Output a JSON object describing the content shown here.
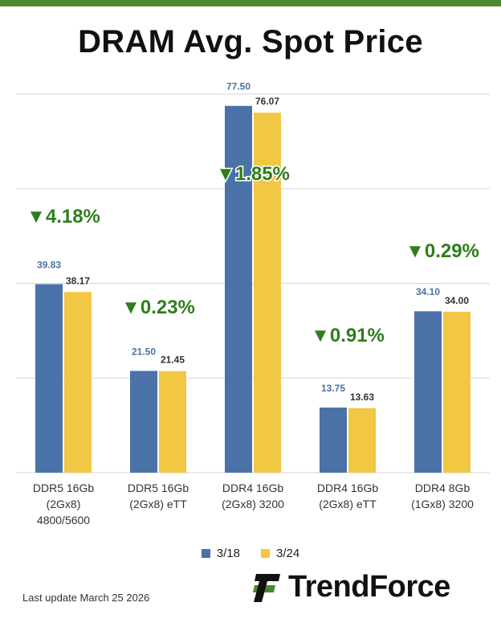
{
  "title": "DRAM Avg. Spot Price",
  "last_update": "Last update  March 25 2026",
  "brand": "TrendForce",
  "colors": {
    "series_1": "#4a72a8",
    "series_2": "#f2c744",
    "change": "#2f7d1c",
    "top_bar": "#4a8a2e"
  },
  "chart_data": {
    "type": "bar",
    "title": "DRAM Avg. Spot Price",
    "categories": [
      [
        "DDR5 16Gb",
        "(2Gx8)",
        "4800/5600"
      ],
      [
        "DDR5 16Gb",
        "(2Gx8) eTT"
      ],
      [
        "DDR4 16Gb",
        "(2Gx8) 3200"
      ],
      [
        "DDR4 16Gb",
        "(2Gx8) eTT"
      ],
      [
        "DDR4 8Gb",
        "(1Gx8) 3200"
      ]
    ],
    "series": [
      {
        "name": "3/18",
        "values": [
          39.83,
          21.5,
          77.5,
          13.75,
          34.1
        ],
        "labels": [
          "39.83",
          "21.50",
          "77.50",
          "13.75",
          "34.10"
        ]
      },
      {
        "name": "3/24",
        "values": [
          38.17,
          21.45,
          76.07,
          13.63,
          34.0
        ],
        "labels": [
          "38.17",
          "21.45",
          "76.07",
          "13.63",
          "34.00"
        ]
      }
    ],
    "changes": [
      "▼4.18%",
      "▼0.23%",
      "▼1.85%",
      "▼0.91%",
      "▼0.29%"
    ],
    "ylim": [
      0,
      80
    ],
    "gridlines": [
      0,
      20,
      40,
      60,
      80
    ],
    "legend": "bottom"
  }
}
